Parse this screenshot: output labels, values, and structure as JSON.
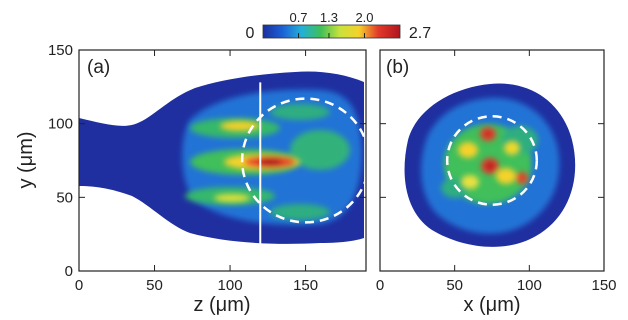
{
  "colorbar": {
    "min_label": "0",
    "max_label": "2.7",
    "ticks": [
      "0.7",
      "1.3",
      "2.0"
    ],
    "tick_values": [
      0.7,
      1.3,
      2.0
    ],
    "range": [
      0,
      2.7
    ],
    "colors": [
      "#1b2f9e",
      "#1d5fd6",
      "#22b0d8",
      "#3fbf5a",
      "#c8e23a",
      "#f5d22c",
      "#e23a2a",
      "#b11420"
    ]
  },
  "chart_data": [
    {
      "type": "heatmap",
      "panel_label": "(a)",
      "xlabel": "z (μm)",
      "ylabel": "y (μm)",
      "xlim": [
        0,
        190
      ],
      "ylim": [
        0,
        150
      ],
      "xticks": [
        0,
        50,
        100,
        150
      ],
      "yticks": [
        0,
        50,
        100,
        150
      ],
      "vertical_line_z": 120,
      "dashed_circle": {
        "center": [
          150,
          75
        ],
        "radius": 42
      },
      "description_values": {
        "peak_z": 120,
        "peak_y": 70,
        "peak_intensity": 2.7
      }
    },
    {
      "type": "heatmap",
      "panel_label": "(b)",
      "xlabel": "x (μm)",
      "ylabel": "",
      "xlim": [
        0,
        150
      ],
      "ylim": [
        0,
        150
      ],
      "xticks": [
        0,
        50,
        100,
        150
      ],
      "yticks": [
        0,
        50,
        100,
        150
      ],
      "dashed_circle": {
        "center": [
          75,
          75
        ],
        "radius": 30
      },
      "description_values": {
        "spot_center_x": 75,
        "spot_center_y": 75,
        "spot_radius": 55
      }
    }
  ]
}
